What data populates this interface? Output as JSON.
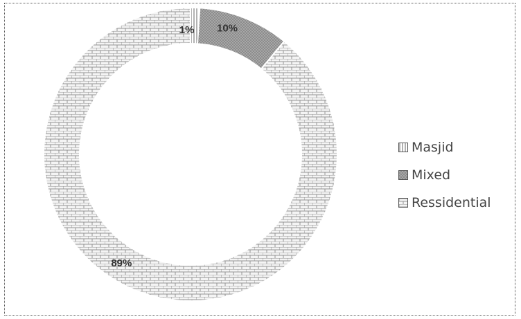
{
  "chart_data": {
    "type": "pie",
    "donut": true,
    "title": "",
    "categories": [
      "Masjid",
      "Mixed",
      "Ressidential"
    ],
    "values": [
      1,
      10,
      89
    ],
    "data_labels": [
      "1%",
      "10%",
      "89%"
    ],
    "colors": [
      "#ffffff",
      "#8a8a8a",
      "#eeeeee"
    ],
    "patterns": [
      "vertical-lines",
      "dots",
      "bricks"
    ],
    "legend_position": "right"
  }
}
